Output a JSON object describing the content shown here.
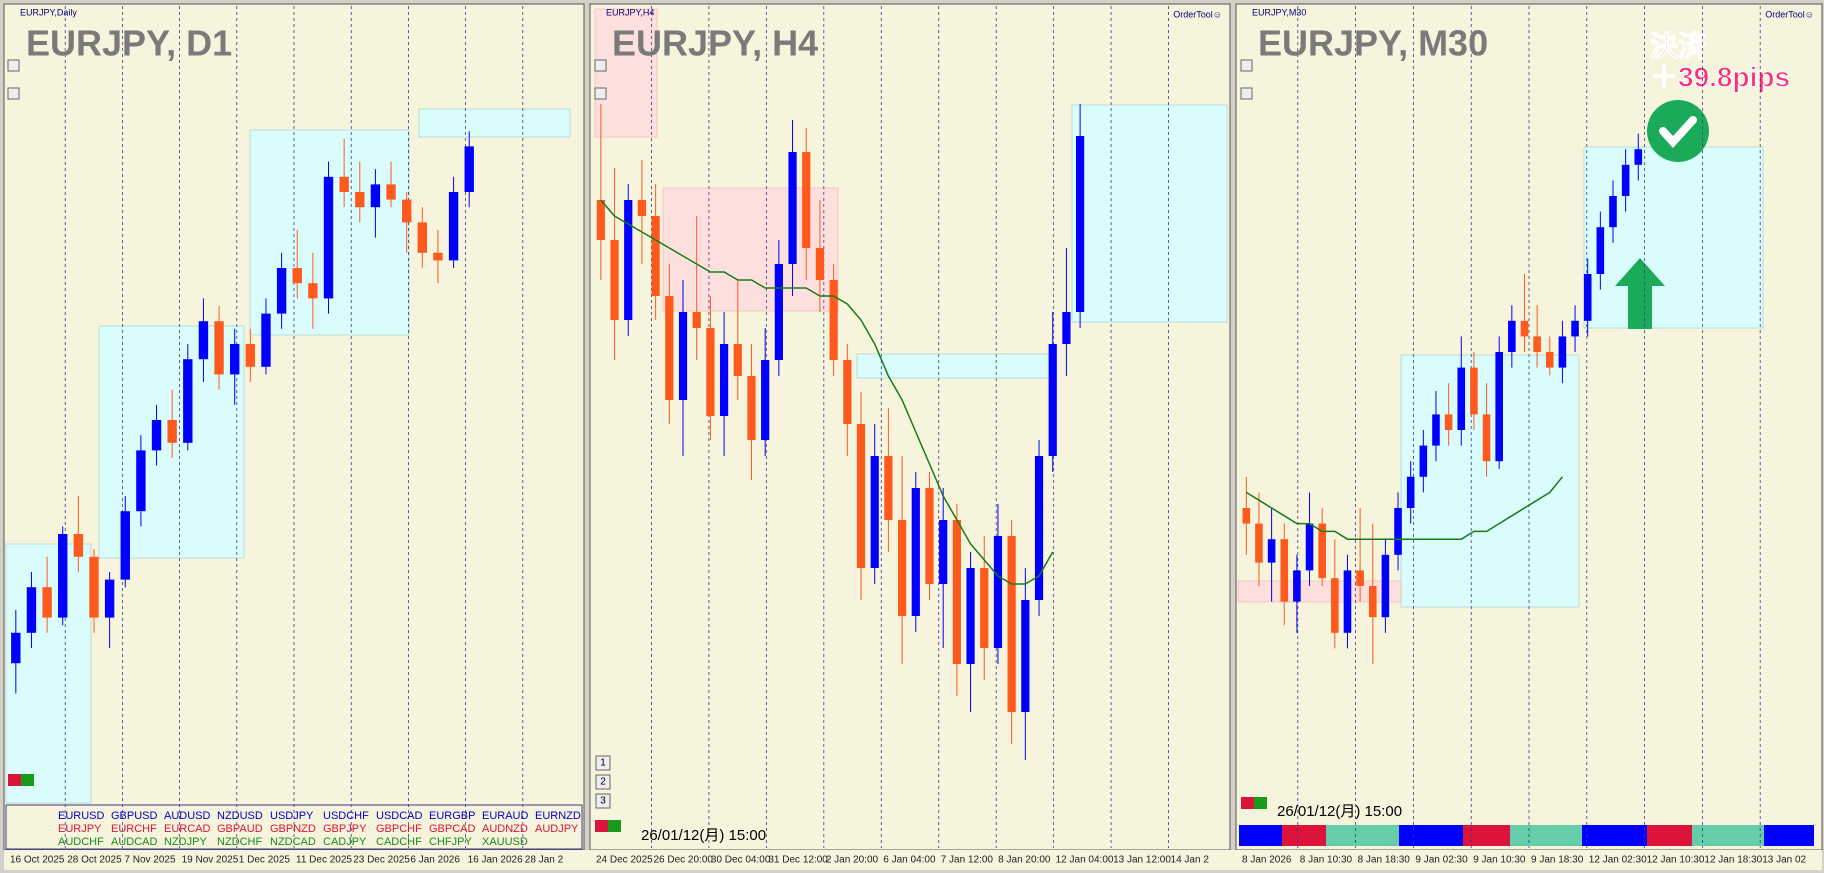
{
  "chart_data": [
    {
      "type": "candlestick",
      "header": "EURJPY,Daily",
      "title": "EURJPY, D1",
      "ylim": [
        0,
        100
      ],
      "up_color": "#0000ff",
      "down_color": "#ff5a1e",
      "x_labels": [
        "16 Oct 2025",
        "28 Oct 2025",
        "7 Nov 2025",
        "19 Nov 2025",
        "1 Dec 2025",
        "11 Dec 2025",
        "23 Dec 2025",
        "6 Jan 2026",
        "16 Jan 2026",
        "28 Jan 2"
      ],
      "candles": [
        [
          18,
          25,
          14,
          22
        ],
        [
          22,
          30,
          20,
          28
        ],
        [
          28,
          32,
          22,
          24
        ],
        [
          24,
          36,
          23,
          35
        ],
        [
          35,
          40,
          30,
          32
        ],
        [
          32,
          33,
          22,
          24
        ],
        [
          24,
          30,
          20,
          29
        ],
        [
          29,
          40,
          28,
          38
        ],
        [
          38,
          48,
          36,
          46
        ],
        [
          46,
          52,
          44,
          50
        ],
        [
          50,
          54,
          45,
          47
        ],
        [
          47,
          60,
          46,
          58
        ],
        [
          58,
          66,
          55,
          63
        ],
        [
          63,
          65,
          54,
          56
        ],
        [
          56,
          62,
          52,
          60
        ],
        [
          60,
          62,
          55,
          57
        ],
        [
          57,
          66,
          56,
          64
        ],
        [
          64,
          72,
          62,
          70
        ],
        [
          70,
          75,
          66,
          68
        ],
        [
          68,
          72,
          62,
          66
        ],
        [
          66,
          84,
          64,
          82
        ],
        [
          82,
          87,
          78,
          80
        ],
        [
          80,
          84,
          76,
          78
        ],
        [
          78,
          83,
          74,
          81
        ],
        [
          81,
          84,
          78,
          79
        ],
        [
          79,
          80,
          72,
          76
        ],
        [
          76,
          78,
          70,
          72
        ],
        [
          72,
          75,
          68,
          71
        ],
        [
          71,
          82,
          70,
          80
        ],
        [
          80,
          88,
          78,
          86
        ]
      ]
    },
    {
      "type": "candlestick",
      "header": "EURJPY,H4",
      "order_tool": "OrderTool☺",
      "title": "EURJPY, H4",
      "ylim": [
        0,
        100
      ],
      "up_color": "#0000ff",
      "down_color": "#ff5a1e",
      "date_label": "26/01/12(月) 15:00",
      "buttons": [
        "1",
        "2",
        "3"
      ],
      "x_labels": [
        "24 Dec 2025",
        "26 Dec 20:00",
        "30 Dec 04:00",
        "31 Dec 12:00",
        "2 Jan 20:00",
        "6 Jan 04:00",
        "7 Jan 12:00",
        "8 Jan 20:00",
        "12 Jan 04:00",
        "13 Jan 12:00",
        "14 Jan 2"
      ],
      "candles": [
        [
          80,
          92,
          70,
          75
        ],
        [
          75,
          84,
          60,
          65
        ],
        [
          65,
          82,
          63,
          80
        ],
        [
          80,
          85,
          72,
          78
        ],
        [
          78,
          82,
          65,
          68
        ],
        [
          68,
          72,
          52,
          55
        ],
        [
          55,
          70,
          48,
          66
        ],
        [
          66,
          78,
          60,
          64
        ],
        [
          64,
          68,
          50,
          53
        ],
        [
          53,
          66,
          48,
          62
        ],
        [
          62,
          70,
          55,
          58
        ],
        [
          58,
          62,
          45,
          50
        ],
        [
          50,
          64,
          48,
          60
        ],
        [
          60,
          75,
          58,
          72
        ],
        [
          72,
          90,
          68,
          86
        ],
        [
          86,
          89,
          70,
          74
        ],
        [
          74,
          80,
          66,
          70
        ],
        [
          70,
          72,
          58,
          60
        ],
        [
          60,
          62,
          48,
          52
        ],
        [
          52,
          56,
          30,
          34
        ],
        [
          34,
          52,
          32,
          48
        ],
        [
          48,
          54,
          36,
          40
        ],
        [
          40,
          48,
          22,
          28
        ],
        [
          28,
          46,
          26,
          44
        ],
        [
          44,
          46,
          30,
          32
        ],
        [
          32,
          44,
          24,
          40
        ],
        [
          40,
          42,
          18,
          22
        ],
        [
          22,
          36,
          16,
          34
        ],
        [
          34,
          38,
          20,
          24
        ],
        [
          24,
          42,
          22,
          38
        ],
        [
          38,
          40,
          12,
          16
        ],
        [
          16,
          34,
          10,
          30
        ],
        [
          30,
          50,
          28,
          48
        ],
        [
          48,
          66,
          46,
          62
        ],
        [
          62,
          74,
          58,
          66
        ],
        [
          66,
          92,
          64,
          88
        ]
      ],
      "ma": {
        "color": "#1a7a1a",
        "values": [
          80,
          78,
          77,
          76,
          75,
          74,
          73,
          72,
          71,
          71,
          70,
          70,
          69,
          69,
          69,
          69,
          68,
          68,
          67,
          65,
          62,
          58,
          55,
          51,
          47,
          43,
          40,
          37,
          35,
          33,
          32,
          32,
          33,
          36,
          null,
          null
        ]
      }
    },
    {
      "type": "candlestick",
      "header": "EURJPY,M30",
      "order_tool": "OrderTool☺",
      "title": "EURJPY, M30",
      "ylim": [
        0,
        100
      ],
      "up_color": "#0000ff",
      "down_color": "#ff5a1e",
      "date_label": "26/01/12(月) 15:00",
      "exit_label": "決済",
      "pips_label": "＋39.8pips",
      "x_labels": [
        "8 Jan 2026",
        "8 Jan 10:30",
        "8 Jan 18:30",
        "9 Jan 02:30",
        "9 Jan 10:30",
        "9 Jan 18:30",
        "12 Jan 02:30",
        "12 Jan 10:30",
        "12 Jan 18:30",
        "13 Jan 02"
      ],
      "candles": [
        [
          40,
          44,
          34,
          38
        ],
        [
          38,
          42,
          30,
          33
        ],
        [
          33,
          40,
          28,
          36
        ],
        [
          36,
          38,
          25,
          28
        ],
        [
          28,
          34,
          24,
          32
        ],
        [
          32,
          42,
          30,
          38
        ],
        [
          38,
          40,
          30,
          31
        ],
        [
          31,
          36,
          22,
          24
        ],
        [
          24,
          34,
          22,
          32
        ],
        [
          32,
          40,
          28,
          30
        ],
        [
          30,
          38,
          20,
          26
        ],
        [
          26,
          36,
          24,
          34
        ],
        [
          34,
          42,
          32,
          40
        ],
        [
          40,
          46,
          38,
          44
        ],
        [
          44,
          50,
          42,
          48
        ],
        [
          48,
          55,
          46,
          52
        ],
        [
          52,
          56,
          48,
          50
        ],
        [
          50,
          62,
          48,
          58
        ],
        [
          58,
          60,
          50,
          52
        ],
        [
          52,
          56,
          44,
          46
        ],
        [
          46,
          62,
          45,
          60
        ],
        [
          60,
          66,
          58,
          64
        ],
        [
          64,
          70,
          60,
          62
        ],
        [
          62,
          66,
          58,
          60
        ],
        [
          60,
          62,
          57,
          58
        ],
        [
          58,
          64,
          56,
          62
        ],
        [
          62,
          66,
          60,
          64
        ],
        [
          64,
          72,
          62,
          70
        ],
        [
          70,
          78,
          68,
          76
        ],
        [
          76,
          82,
          74,
          80
        ],
        [
          80,
          86,
          78,
          84
        ],
        [
          84,
          88,
          82,
          86
        ]
      ],
      "ma": {
        "color": "#1a7a1a",
        "values": [
          42,
          41,
          40,
          39,
          38,
          38,
          37,
          37,
          36,
          36,
          36,
          36,
          36,
          36,
          36,
          36,
          36,
          36,
          37,
          37,
          38,
          39,
          40,
          41,
          42,
          44,
          null,
          null,
          null,
          null,
          null,
          null
        ]
      }
    }
  ],
  "symbol_list": [
    [
      "EURUSD",
      "GBPUSD",
      "AUDUSD",
      "NZDUSD",
      "USDJPY",
      "USDCHF",
      "USDCAD",
      "EURGBP",
      "EURAUD",
      "EURNZD"
    ],
    [
      "EURJPY",
      "EURCHF",
      "EURCAD",
      "GBPAUD",
      "GBPNZD",
      "GBPJPY",
      "GBPCHF",
      "GBPCAD",
      "AUDNZD",
      "AUDJPY"
    ],
    [
      "AUDCHF",
      "AUDCAD",
      "NZDJPY",
      "NZDCHF",
      "NZDCAD",
      "CADJPY",
      "CADCHF",
      "CHFJPY",
      "XAUUSD"
    ]
  ]
}
